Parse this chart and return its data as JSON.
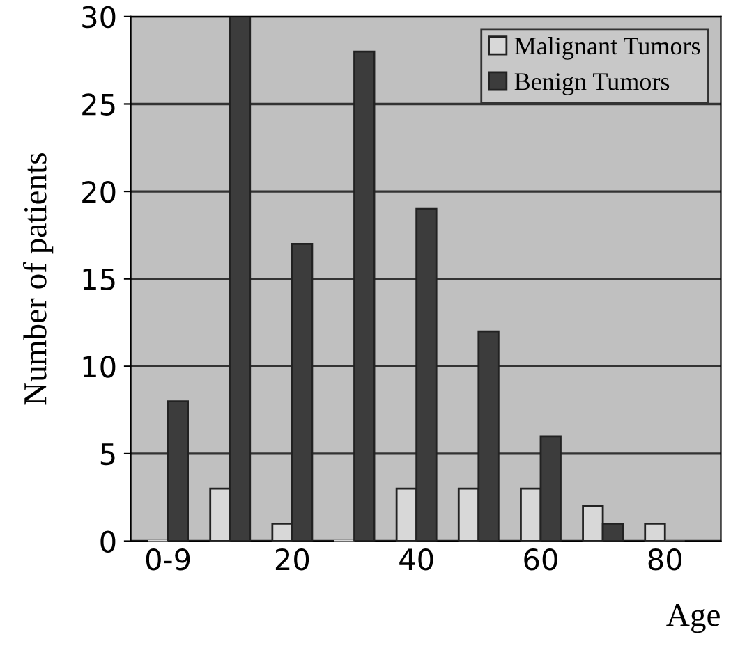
{
  "chart_data": {
    "type": "bar",
    "xlabel": "Age",
    "ylabel": "Number of patients",
    "categories": [
      "0-9",
      null,
      "20",
      null,
      "40",
      null,
      "60",
      null,
      "80"
    ],
    "series": [
      {
        "name": "Malignant Tumors",
        "color": "#d8d8d8",
        "values": [
          0,
          3,
          1,
          0,
          3,
          3,
          3,
          2,
          1
        ]
      },
      {
        "name": "Benign Tumors",
        "color": "#3c3c3c",
        "values": [
          8,
          30,
          17,
          28,
          19,
          12,
          6,
          1,
          0
        ]
      }
    ],
    "ylim": [
      0,
      30
    ],
    "yticks": [
      0,
      5,
      10,
      15,
      20,
      25,
      30
    ],
    "grid": "y",
    "legend": "top right"
  }
}
